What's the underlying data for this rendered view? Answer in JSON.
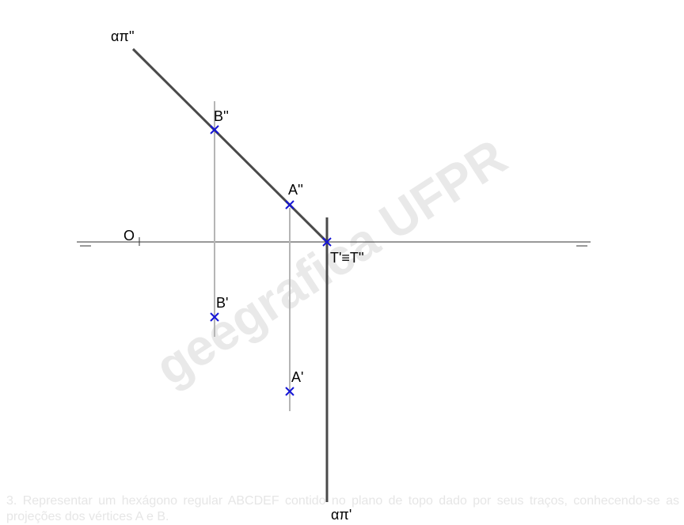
{
  "watermark": "geegrafica UFPR",
  "labels": {
    "alpha_v": "απ''",
    "alpha_h": "απ'",
    "b_v": "B''",
    "a_v": "A''",
    "b_h": "B'",
    "a_h": "A'",
    "t": "T'≡T''",
    "o": "O"
  },
  "footer": {
    "number": "3.",
    "text": "Representar um hexágono regular ABCDEF contido no plano de topo dado por seus traços, conhecendo-se as projeções dos vértices A e B."
  },
  "colors": {
    "trace": "#4a4a4a",
    "axis": "#333333",
    "projector": "#b5b5b5",
    "point": "#1515d6",
    "watermark": "#e9e9e9",
    "footer": "#e6e6e6"
  }
}
